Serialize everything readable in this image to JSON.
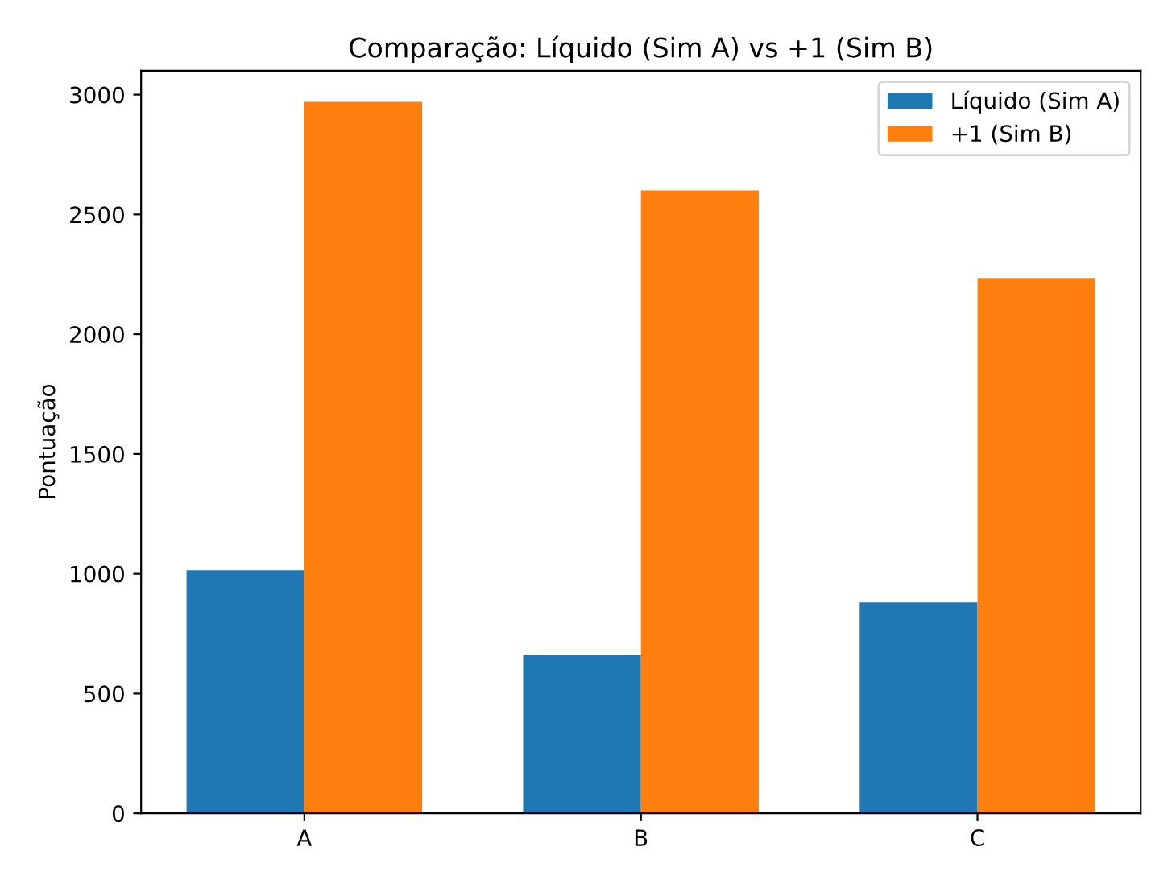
{
  "chart_data": {
    "type": "bar",
    "title": "Comparação: Líquido (Sim A) vs +1 (Sim B)",
    "ylabel": "Pontuação",
    "categories": [
      "A",
      "B",
      "C"
    ],
    "series": [
      {
        "name": "Líquido (Sim A)",
        "color": "#1f77b4",
        "values": [
          1015,
          660,
          880
        ]
      },
      {
        "name": "+1 (Sim B)",
        "color": "#ff7f0e",
        "values": [
          2970,
          2600,
          2235
        ]
      }
    ],
    "ylim": [
      0,
      3100
    ],
    "yticks": [
      0,
      500,
      1000,
      1500,
      2000,
      2500,
      3000
    ],
    "grid": false,
    "legend": "top right"
  }
}
